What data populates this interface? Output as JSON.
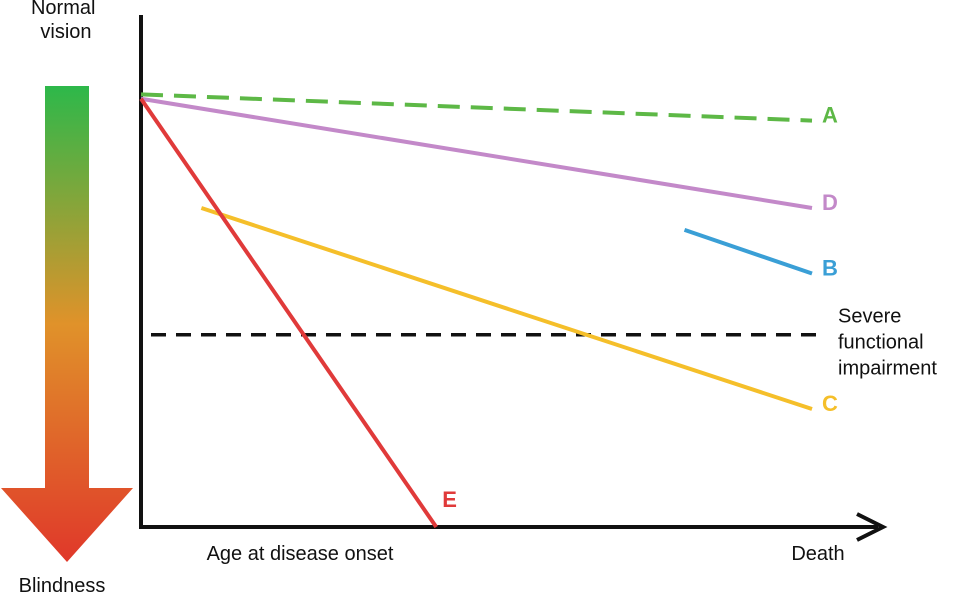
{
  "chart_data": {
    "type": "line",
    "title": "",
    "scale": {
      "top_label": "Normal vision",
      "bottom_label": "Blindness",
      "gradient_colors": [
        "#2db84a",
        "#e0922a",
        "#e0382a"
      ]
    },
    "xlabel_left": "Age at disease onset",
    "xlabel_right": "Death",
    "xlim": [
      0,
      100
    ],
    "ylim": [
      0,
      100
    ],
    "threshold": {
      "label_lines": [
        "Severe",
        "functional",
        "impairment"
      ],
      "y": 44,
      "color": "#111111"
    },
    "series": [
      {
        "name": "A",
        "color": "#5db846",
        "dashed": true,
        "x": [
          0,
          100
        ],
        "y": [
          99,
          93
        ]
      },
      {
        "name": "D",
        "color": "#c389c9",
        "dashed": false,
        "x": [
          0,
          100
        ],
        "y": [
          98,
          73
        ]
      },
      {
        "name": "B",
        "color": "#3a9fd6",
        "dashed": false,
        "x": [
          81,
          100
        ],
        "y": [
          68,
          58
        ]
      },
      {
        "name": "C",
        "color": "#f5bf2a",
        "dashed": false,
        "x": [
          9,
          100
        ],
        "y": [
          73,
          27
        ]
      },
      {
        "name": "E",
        "color": "#e03a3a",
        "dashed": false,
        "x": [
          0,
          44
        ],
        "y": [
          98,
          0
        ]
      }
    ]
  }
}
